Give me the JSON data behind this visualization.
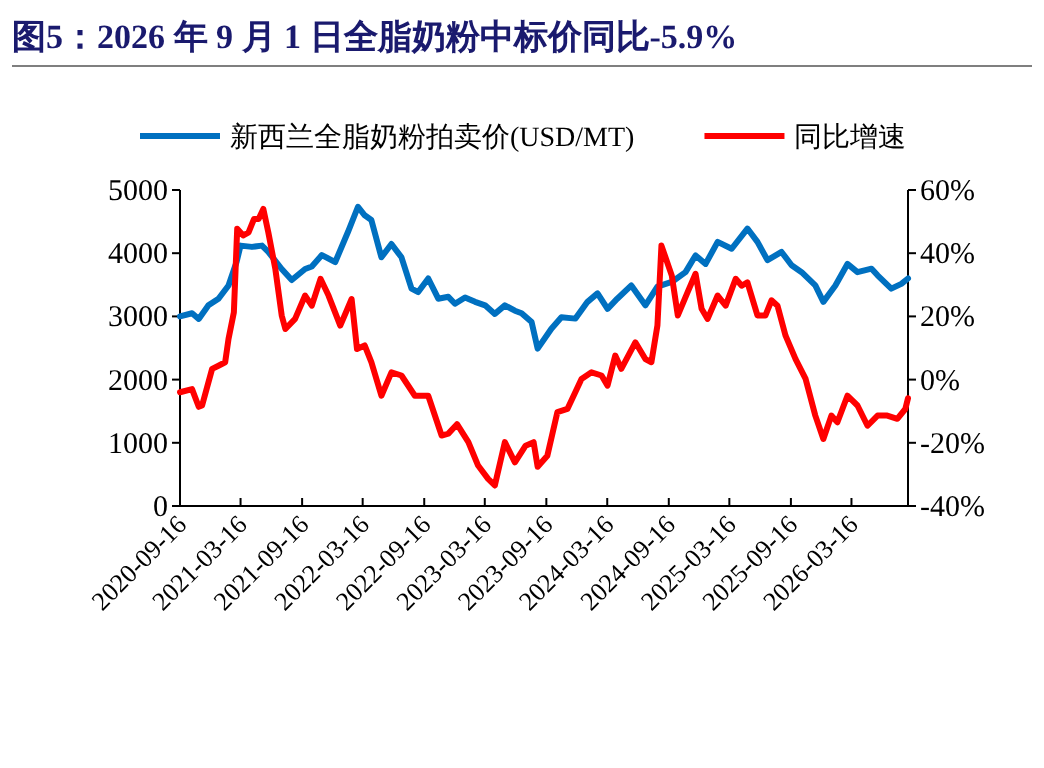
{
  "chart_data": {
    "type": "line",
    "title": "图5：2026 年 9 月 1 日全脂奶粉中标价同比-5.9%",
    "xlim": [
      "2020-09-16",
      "2026-09-01"
    ],
    "xticks": [
      "2020-09-16",
      "2021-03-16",
      "2021-09-16",
      "2022-03-16",
      "2022-09-16",
      "2023-03-16",
      "2023-09-16",
      "2024-03-16",
      "2024-09-16",
      "2025-03-16",
      "2025-09-16",
      "2026-03-16"
    ],
    "ylim": [
      0,
      5000
    ],
    "yticks": [
      0,
      1000,
      2000,
      3000,
      4000,
      5000
    ],
    "y2lim": [
      -40,
      60
    ],
    "y2ticks": [
      {
        "value": -40,
        "label": "-40%"
      },
      {
        "value": -20,
        "label": "-20%"
      },
      {
        "value": 0,
        "label": "0%"
      },
      {
        "value": 20,
        "label": "20%"
      },
      {
        "value": 40,
        "label": "40%"
      },
      {
        "value": 60,
        "label": "60%"
      }
    ],
    "legend": "top",
    "grid": false,
    "marker": "none",
    "line_style": "solid",
    "series": [
      {
        "name": "新西兰全脂奶粉拍卖价(USD/MT)",
        "color": "#0070c0",
        "axis": "y",
        "x": [
          "2020-09-16",
          "2020-10-22",
          "2020-11-11",
          "2020-12-10",
          "2021-01-09",
          "2021-02-08",
          "2021-03-04",
          "2021-03-16",
          "2021-04-19",
          "2021-05-19",
          "2021-06-07",
          "2021-07-17",
          "2021-08-16",
          "2021-09-25",
          "2021-10-15",
          "2021-11-14",
          "2021-12-24",
          "2022-01-31",
          "2022-03-02",
          "2022-03-22",
          "2022-04-11",
          "2022-05-11",
          "2022-06-10",
          "2022-07-10",
          "2022-08-09",
          "2022-08-29",
          "2022-09-28",
          "2022-10-28",
          "2022-11-27",
          "2022-12-17",
          "2023-01-16",
          "2023-02-15",
          "2023-03-17",
          "2023-04-15",
          "2023-05-15",
          "2023-06-14",
          "2023-07-04",
          "2023-08-03",
          "2023-08-21",
          "2023-10-01",
          "2023-10-31",
          "2023-12-12",
          "2024-01-17",
          "2024-02-16",
          "2024-03-17",
          "2024-04-15",
          "2024-05-27",
          "2024-07-08",
          "2024-08-13",
          "2024-09-25",
          "2024-11-05",
          "2024-12-05",
          "2025-01-04",
          "2025-02-09",
          "2025-03-23",
          "2025-05-09",
          "2025-06-08",
          "2025-07-08",
          "2025-08-19",
          "2025-09-18",
          "2025-10-18",
          "2025-11-28",
          "2025-12-22",
          "2026-01-27",
          "2026-03-04",
          "2026-04-03",
          "2026-05-15",
          "2026-06-02",
          "2026-07-13",
          "2026-08-12",
          "2026-09-01"
        ],
        "values": [
          3000,
          3050,
          2960,
          3175,
          3280,
          3490,
          3860,
          4120,
          4100,
          4120,
          4020,
          3750,
          3575,
          3750,
          3790,
          3970,
          3860,
          4335,
          4735,
          4600,
          4525,
          3935,
          4145,
          3935,
          3440,
          3385,
          3600,
          3280,
          3310,
          3200,
          3300,
          3230,
          3175,
          3040,
          3175,
          3090,
          3050,
          2910,
          2490,
          2805,
          2985,
          2965,
          3230,
          3365,
          3120,
          3280,
          3490,
          3175,
          3470,
          3545,
          3700,
          3965,
          3830,
          4180,
          4070,
          4390,
          4180,
          3890,
          4020,
          3810,
          3700,
          3490,
          3230,
          3490,
          3830,
          3700,
          3755,
          3650,
          3440,
          3515,
          3600
        ]
      },
      {
        "name": "同比增速",
        "color": "#ff0000",
        "axis": "y2",
        "x": [
          "2020-09-16",
          "2020-10-22",
          "2020-11-11",
          "2020-11-21",
          "2020-12-21",
          "2021-01-09",
          "2021-01-29",
          "2021-02-08",
          "2021-02-24",
          "2021-03-06",
          "2021-03-24",
          "2021-04-09",
          "2021-04-25",
          "2021-05-09",
          "2021-05-23",
          "2021-06-07",
          "2021-06-28",
          "2021-07-17",
          "2021-07-28",
          "2021-08-26",
          "2021-09-25",
          "2021-10-15",
          "2021-11-10",
          "2021-12-04",
          "2022-01-08",
          "2022-02-11",
          "2022-02-27",
          "2022-03-22",
          "2022-04-11",
          "2022-05-11",
          "2022-06-10",
          "2022-07-10",
          "2022-08-19",
          "2022-09-28",
          "2022-11-07",
          "2022-11-27",
          "2022-12-23",
          "2023-01-26",
          "2023-02-24",
          "2023-03-26",
          "2023-04-15",
          "2023-05-15",
          "2023-06-14",
          "2023-07-16",
          "2023-08-09",
          "2023-08-21",
          "2023-09-19",
          "2023-10-19",
          "2023-11-18",
          "2023-12-30",
          "2024-01-29",
          "2024-02-28",
          "2024-03-17",
          "2024-04-09",
          "2024-04-27",
          "2024-06-08",
          "2024-07-08",
          "2024-07-26",
          "2024-08-13",
          "2024-08-25",
          "2024-09-25",
          "2024-10-13",
          "2024-11-11",
          "2024-12-05",
          "2024-12-23",
          "2025-01-10",
          "2025-02-09",
          "2025-03-05",
          "2025-04-04",
          "2025-04-22",
          "2025-05-09",
          "2025-06-08",
          "2025-07-02",
          "2025-07-20",
          "2025-08-07",
          "2025-08-31",
          "2025-09-30",
          "2025-10-30",
          "2025-11-28",
          "2025-12-22",
          "2026-01-15",
          "2026-02-02",
          "2026-03-04",
          "2026-04-03",
          "2026-05-03",
          "2026-06-02",
          "2026-07-01",
          "2026-07-31",
          "2026-08-24",
          "2026-09-01"
        ],
        "values": [
          -4.0,
          -3.0,
          -8.6,
          -8.2,
          3.4,
          4.4,
          5.5,
          12.9,
          21.3,
          47.7,
          45.6,
          46.6,
          50.8,
          50.8,
          54.0,
          46.6,
          35.0,
          20.3,
          16.0,
          19.2,
          26.6,
          23.4,
          31.9,
          26.6,
          17.1,
          25.5,
          9.7,
          10.8,
          5.5,
          -5.1,
          2.3,
          1.3,
          -5.1,
          -5.1,
          -17.7,
          -17.1,
          -14.1,
          -19.8,
          -27.2,
          -31.4,
          -33.5,
          -19.8,
          -26.2,
          -20.9,
          -19.8,
          -27.6,
          -24.1,
          -10.3,
          -9.3,
          0.2,
          2.3,
          1.3,
          -1.9,
          7.6,
          3.4,
          11.8,
          6.5,
          5.5,
          17.1,
          42.4,
          32.9,
          20.3,
          27.6,
          33.5,
          22.4,
          19.2,
          26.6,
          23.4,
          31.9,
          29.7,
          30.8,
          20.3,
          20.3,
          25.1,
          23.4,
          13.9,
          6.5,
          0.2,
          -11.4,
          -18.8,
          -11.4,
          -13.5,
          -5.1,
          -8.2,
          -14.6,
          -11.4,
          -11.4,
          -12.4,
          -9.3,
          -5.9
        ]
      }
    ]
  }
}
